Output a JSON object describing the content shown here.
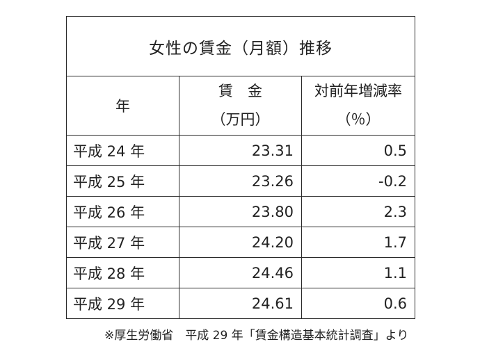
{
  "table": {
    "title": "女性の賃金（月額）推移",
    "headers": {
      "year": "年",
      "wage_line1": "賃　金",
      "wage_line2": "（万円）",
      "rate_line1": "対前年増減率",
      "rate_line2": "（％）"
    },
    "rows": [
      {
        "year": "平成 24 年",
        "wage": "23.31",
        "rate": "0.5"
      },
      {
        "year": "平成 25 年",
        "wage": "23.26",
        "rate": "-0.2"
      },
      {
        "year": "平成 26 年",
        "wage": "23.80",
        "rate": "2.3"
      },
      {
        "year": "平成 27 年",
        "wage": "24.20",
        "rate": "1.7"
      },
      {
        "year": "平成 28 年",
        "wage": "24.46",
        "rate": "1.1"
      },
      {
        "year": "平成 29 年",
        "wage": "24.61",
        "rate": "0.6"
      }
    ]
  },
  "source": "※厚生労働省　平成 29 年「賃金構造基本統計調査」より"
}
